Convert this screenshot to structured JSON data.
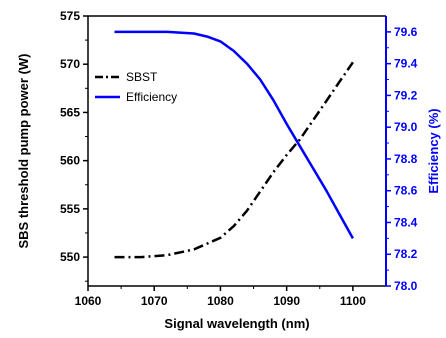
{
  "chart_data": {
    "type": "line",
    "title": "",
    "xlabel": "Signal wavelength (nm)",
    "ylabel_left": "SBS threshold pump power (W)",
    "ylabel_right": "Efficiency (%)",
    "xlim": [
      1060,
      1105
    ],
    "ylim_left": [
      547,
      575
    ],
    "ylim_right": [
      78.0,
      79.7
    ],
    "x_ticks": [
      "1060",
      "1070",
      "1080",
      "1090",
      "1100"
    ],
    "y_left_ticks": [
      "550",
      "555",
      "560",
      "565",
      "570",
      "575"
    ],
    "y_right_ticks": [
      "78.0",
      "78.2",
      "78.4",
      "78.6",
      "78.8",
      "79.0",
      "79.2",
      "79.4",
      "79.6"
    ],
    "legend_position": "upper-left",
    "colors": {
      "left_axis": "#000000",
      "right_axis": "#0000ff",
      "sbst": "#000000",
      "efficiency": "#0000ff"
    },
    "series": [
      {
        "name": "SBST",
        "axis": "left",
        "style": "dash-dot",
        "color": "#000000",
        "x": [
          1064,
          1068,
          1072,
          1076,
          1080,
          1082,
          1084,
          1086,
          1088,
          1090,
          1092,
          1094,
          1096,
          1098,
          1100
        ],
        "y": [
          550.0,
          550.0,
          550.2,
          550.8,
          552.0,
          553.2,
          554.8,
          556.8,
          558.8,
          560.6,
          562.2,
          564.2,
          566.2,
          568.2,
          570.2
        ]
      },
      {
        "name": "Efficiency",
        "axis": "right",
        "style": "solid",
        "color": "#0000ff",
        "x": [
          1064,
          1068,
          1072,
          1076,
          1078,
          1080,
          1082,
          1084,
          1086,
          1088,
          1090,
          1092,
          1094,
          1096,
          1098,
          1100
        ],
        "y": [
          79.6,
          79.6,
          79.6,
          79.59,
          79.57,
          79.54,
          79.48,
          79.4,
          79.3,
          79.17,
          79.02,
          78.88,
          78.74,
          78.6,
          78.45,
          78.3
        ]
      }
    ]
  }
}
